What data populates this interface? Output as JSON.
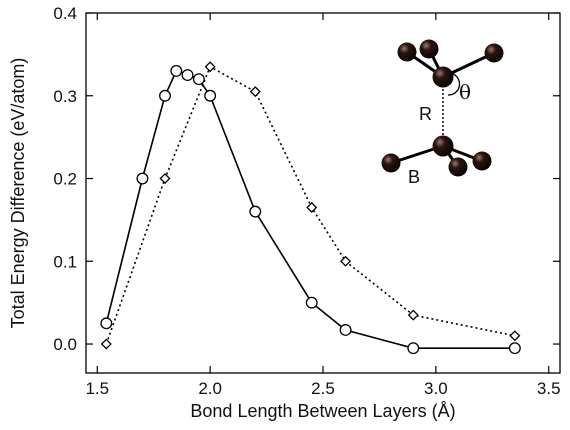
{
  "chart_data": {
    "type": "line",
    "xlabel": "Bond Length Between Layers (Å)",
    "ylabel": "Total Energy Difference (eV/atom)",
    "xlim": [
      1.45,
      3.55
    ],
    "ylim": [
      -0.035,
      0.4
    ],
    "xticks": [
      1.5,
      2.0,
      2.5,
      3.0,
      3.5
    ],
    "xtick_labels": [
      "1.5",
      "2.0",
      "2.5",
      "3.0",
      "3.5"
    ],
    "yticks": [
      0.0,
      0.1,
      0.2,
      0.3,
      0.4
    ],
    "ytick_labels": [
      "0.0",
      "0.1",
      "0.2",
      "0.3",
      "0.4"
    ],
    "grid": false,
    "series": [
      {
        "marker": "circle",
        "line": "solid",
        "color": "#000000",
        "x": [
          1.54,
          1.7,
          1.8,
          1.85,
          1.9,
          1.95,
          2.0,
          2.2,
          2.45,
          2.6,
          2.9,
          3.35
        ],
        "y": [
          0.025,
          0.2,
          0.3,
          0.33,
          0.325,
          0.32,
          0.3,
          0.16,
          0.05,
          0.017,
          -0.005,
          -0.005
        ]
      },
      {
        "marker": "diamond",
        "line": "dotted",
        "color": "#000000",
        "x": [
          1.54,
          1.8,
          2.0,
          2.2,
          2.45,
          2.6,
          2.9,
          3.35
        ],
        "y": [
          0.0,
          0.2,
          0.335,
          0.305,
          0.165,
          0.1,
          0.035,
          0.01
        ]
      }
    ],
    "inset": {
      "label_r": "R",
      "label_theta": "θ",
      "label_b": "B",
      "atom_color": "#2a1410"
    }
  }
}
